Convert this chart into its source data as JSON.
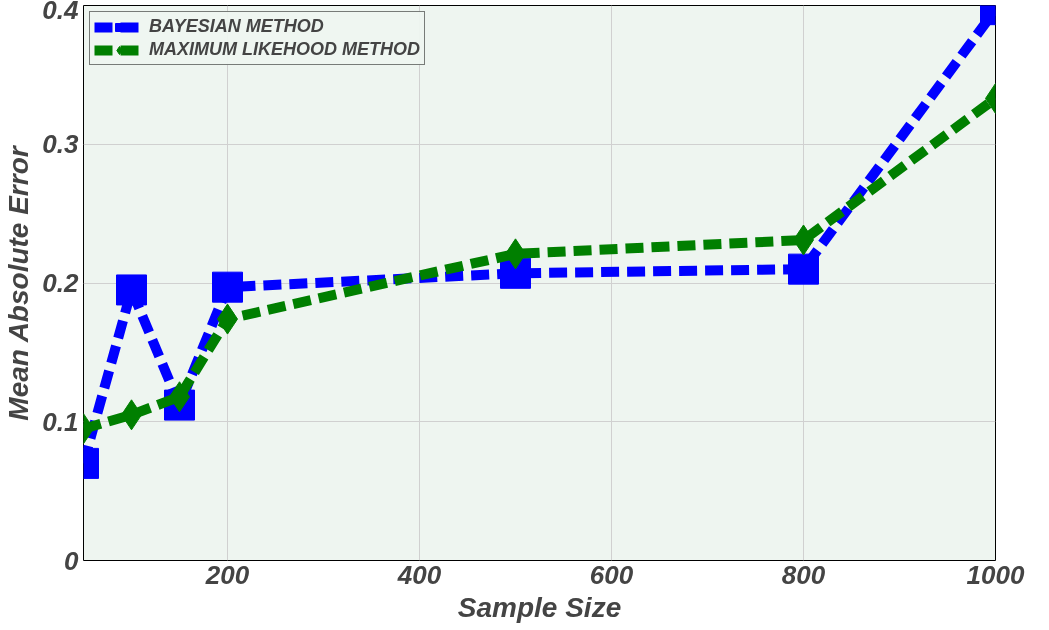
{
  "chart_data": {
    "type": "line",
    "xlabel": "Sample Size",
    "ylabel": "Mean Absolute Error",
    "x": [
      50,
      100,
      150,
      200,
      500,
      800,
      1000
    ],
    "series": [
      {
        "name": "BAYESIAN METHOD",
        "color": "#0000ff",
        "marker": "square",
        "line_style": "dashed",
        "values": [
          0.07,
          0.195,
          0.112,
          0.197,
          0.207,
          0.21,
          0.397
        ]
      },
      {
        "name": "MAXIMUM LIKEHOOD METHOD",
        "color": "#007f00",
        "marker": "diamond",
        "line_style": "dashed",
        "values": [
          0.095,
          0.105,
          0.118,
          0.174,
          0.221,
          0.231,
          0.333
        ]
      }
    ],
    "xlim": [
      50,
      1000
    ],
    "ylim": [
      0,
      0.4
    ],
    "xticks": [
      200,
      400,
      600,
      800,
      1000
    ],
    "yticks": [
      0,
      0.1,
      0.2,
      0.3,
      0.4
    ],
    "grid": true,
    "legend": "top left"
  }
}
